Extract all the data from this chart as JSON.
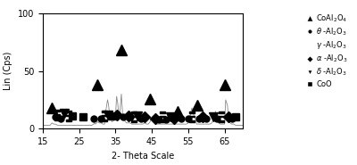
{
  "xlim": [
    15,
    70
  ],
  "ylim": [
    0,
    100
  ],
  "xticks": [
    15,
    25,
    35,
    45,
    55,
    65
  ],
  "yticks": [
    0,
    50,
    100
  ],
  "xlabel": "2- Theta Scale",
  "ylabel": "Lin (Cps)",
  "background_color": "#ffffff",
  "xrd_line_color": "#888888",
  "markers": {
    "CoAl2O4": {
      "symbol": "^",
      "color": "black",
      "label": "CoAl₂O₄",
      "size": 8
    },
    "theta_Al2O3": {
      "symbol": "o",
      "color": "black",
      "label": "θ -Al₂O₃",
      "size": 5
    },
    "gamma_Al2O3": {
      "symbol": "$\\mathbf{\\Xi}$",
      "color": "black",
      "label": "γ -Al₂O₃",
      "size": 7
    },
    "alpha_Al2O3": {
      "symbol": "D",
      "color": "black",
      "label": "α -Al₂O₃",
      "size": 6
    },
    "delta_Al2O3": {
      "symbol": "v",
      "color": "black",
      "label": "δ -Al₂O₃",
      "size": 7
    },
    "CoO": {
      "symbol": "s",
      "color": "black",
      "label": "CoO",
      "size": 6
    }
  },
  "CoAl2O4_positions": [
    [
      17.5,
      18
    ],
    [
      30,
      38
    ],
    [
      36.5,
      68
    ],
    [
      44.5,
      26
    ],
    [
      52,
      15
    ],
    [
      57.5,
      20
    ],
    [
      65,
      38
    ]
  ],
  "theta_positions": [
    [
      18.5,
      10
    ],
    [
      20,
      9
    ],
    [
      29,
      9
    ],
    [
      31,
      9
    ],
    [
      37,
      10
    ],
    [
      39,
      10
    ],
    [
      42,
      9
    ],
    [
      47,
      8
    ],
    [
      49,
      8
    ],
    [
      53,
      9
    ],
    [
      55,
      9
    ],
    [
      58,
      9
    ],
    [
      60,
      9
    ],
    [
      63,
      9
    ],
    [
      67,
      9
    ]
  ],
  "gamma_positions": [
    [
      19,
      12
    ],
    [
      22,
      11
    ],
    [
      32,
      11
    ],
    [
      40,
      10
    ],
    [
      48,
      10
    ],
    [
      56,
      10
    ],
    [
      64,
      10
    ]
  ],
  "alpha_positions": [
    [
      35.5,
      12
    ],
    [
      38.5,
      11
    ],
    [
      43,
      10
    ],
    [
      46,
      9
    ],
    [
      51,
      9
    ],
    [
      59,
      10
    ],
    [
      66,
      10
    ]
  ],
  "delta_positions": [
    [
      21,
      13
    ],
    [
      33,
      12
    ],
    [
      41,
      11
    ],
    [
      50,
      10
    ],
    [
      62,
      10
    ]
  ],
  "CoO_positions": [
    [
      23,
      11
    ],
    [
      26,
      10
    ],
    [
      34,
      11
    ],
    [
      68,
      10
    ]
  ],
  "xrd_x": [
    15,
    16,
    17,
    17.5,
    18,
    18.5,
    19,
    19.5,
    20,
    20.5,
    21,
    21.5,
    22,
    22.5,
    23,
    23.5,
    24,
    24.5,
    25,
    25.5,
    26,
    26.5,
    27,
    27.5,
    28,
    28.5,
    29,
    29.2,
    29.5,
    30,
    30.5,
    31,
    31.5,
    32,
    32.3,
    32.8,
    33,
    33.5,
    34,
    34.5,
    35,
    35.3,
    35.6,
    36,
    36.3,
    36.6,
    37,
    37.5,
    38,
    38.5,
    39,
    39.5,
    40,
    40.5,
    41,
    41.5,
    42,
    42.5,
    43,
    43.5,
    44,
    44.5,
    45,
    45.5,
    46,
    46.5,
    47,
    47.5,
    48,
    48.5,
    49,
    49.5,
    50,
    50.5,
    51,
    51.5,
    52,
    52.5,
    53,
    53.5,
    54,
    54.5,
    55,
    55.5,
    56,
    56.5,
    57,
    57.3,
    57.6,
    58,
    58.5,
    59,
    59.5,
    60,
    60.5,
    61,
    61.5,
    62,
    62.5,
    63,
    63.3,
    63.8,
    64,
    64.3,
    64.8,
    65,
    65.3,
    65.8,
    66,
    66.5,
    67,
    67.5,
    68,
    68.5,
    69,
    70
  ],
  "xrd_y": [
    3,
    3,
    3,
    5,
    4,
    4,
    3,
    3,
    3,
    3,
    3,
    3,
    3,
    3,
    3,
    3,
    3,
    3,
    3,
    3,
    3,
    3,
    3,
    3,
    3,
    3,
    4,
    5,
    4,
    6,
    5,
    5,
    4,
    4,
    15,
    25,
    22,
    10,
    6,
    7,
    12,
    28,
    22,
    8,
    18,
    30,
    10,
    7,
    5,
    5,
    5,
    4,
    4,
    4,
    4,
    4,
    4,
    4,
    5,
    4,
    4,
    6,
    10,
    7,
    5,
    4,
    4,
    4,
    4,
    4,
    4,
    4,
    4,
    4,
    4,
    4,
    4,
    4,
    4,
    4,
    4,
    4,
    5,
    10,
    18,
    12,
    8,
    4,
    4,
    4,
    4,
    4,
    4,
    4,
    4,
    4,
    5,
    9,
    15,
    10,
    5,
    4,
    4,
    4,
    4,
    4,
    25,
    20,
    12,
    5,
    4,
    4,
    3,
    3,
    3,
    3
  ]
}
